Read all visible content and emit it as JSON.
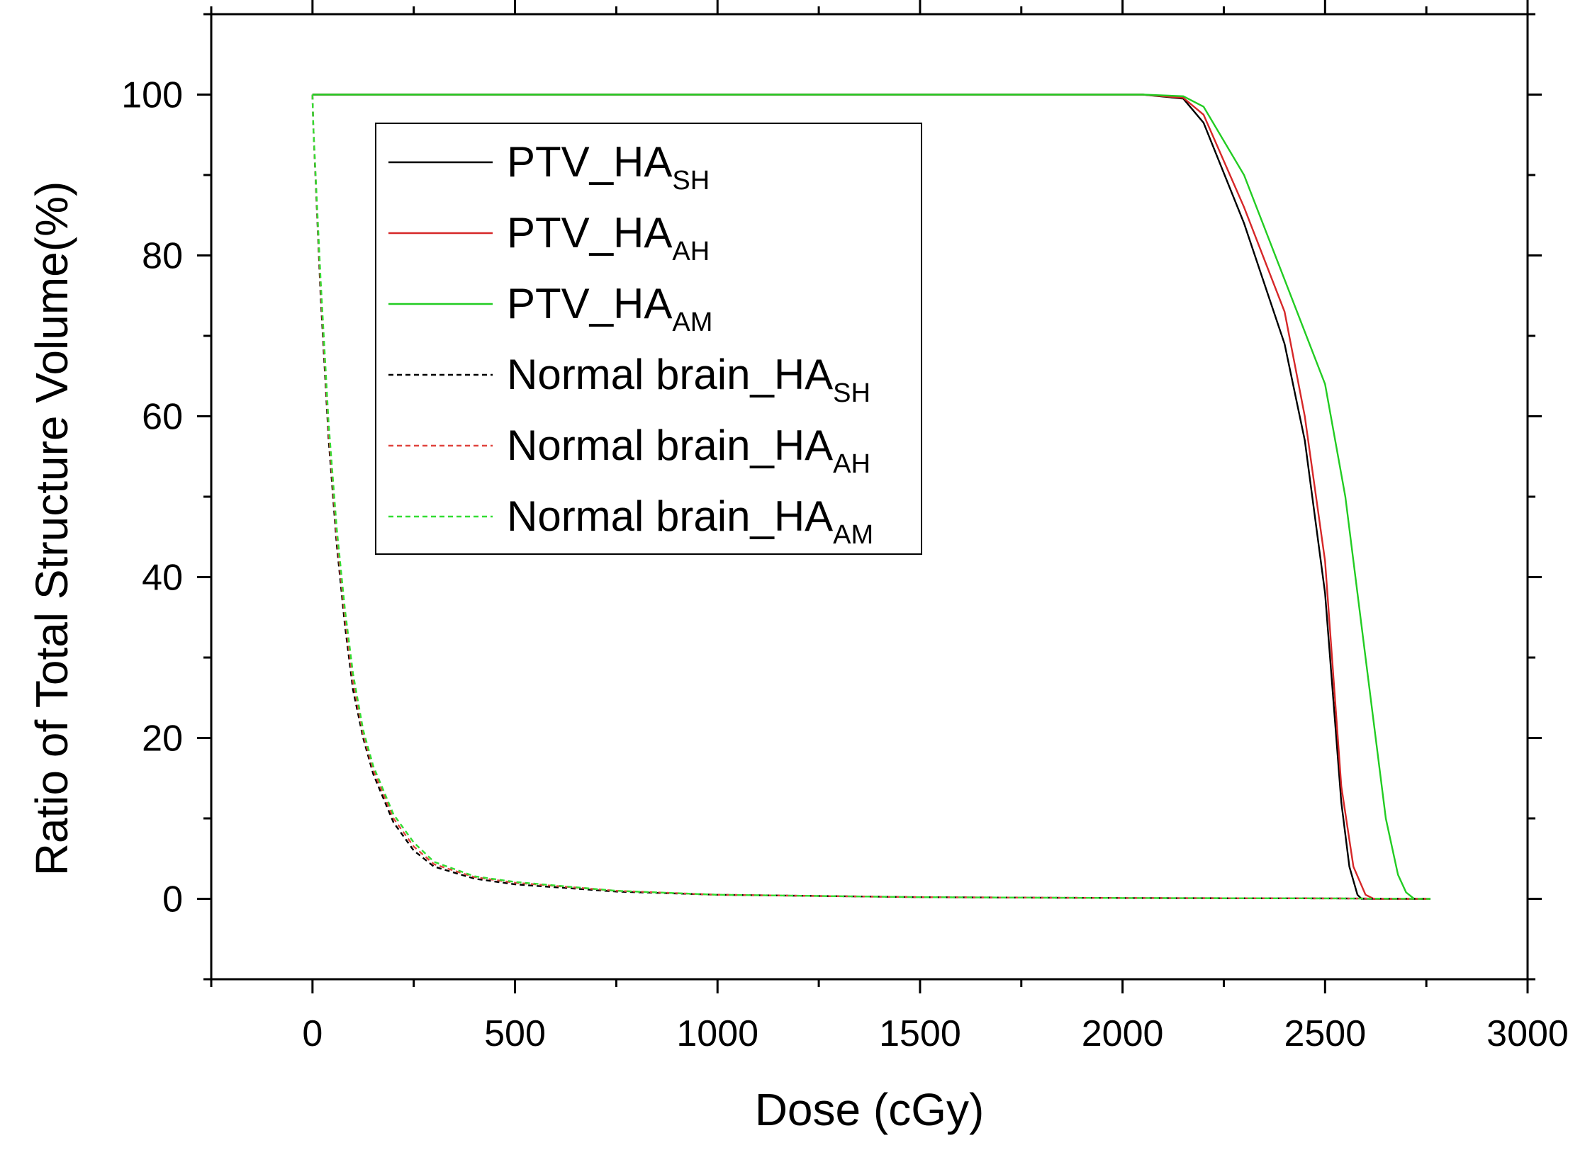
{
  "chart_data": {
    "type": "line",
    "title": "",
    "xlabel": "Dose (cGy)",
    "ylabel": "Ratio of Total Structure Volume(%)",
    "xlim": [
      -250,
      3000
    ],
    "ylim": [
      -10,
      110
    ],
    "x_ticks": [
      0,
      500,
      1000,
      1500,
      2000,
      2500,
      3000
    ],
    "x_tick_labels": [
      "0",
      "500",
      "1000",
      "1500",
      "2000",
      "2500",
      "3000"
    ],
    "y_ticks": [
      0,
      20,
      40,
      60,
      80,
      100
    ],
    "y_tick_labels": [
      "0",
      "20",
      "40",
      "60",
      "80",
      "100"
    ],
    "grid": false,
    "legend_position": "top-left",
    "series": [
      {
        "name": "PTV_HA",
        "sub": "SH",
        "color": "#000000",
        "dash": "solid",
        "x": [
          0,
          2050,
          2150,
          2200,
          2300,
          2400,
          2450,
          2500,
          2540,
          2560,
          2580,
          2590,
          2760
        ],
        "y": [
          100,
          100,
          99.5,
          96.5,
          84,
          69,
          57,
          38,
          12,
          4,
          0.5,
          0,
          0
        ]
      },
      {
        "name": "PTV_HA",
        "sub": "AH",
        "color": "#d62728",
        "dash": "solid",
        "x": [
          0,
          2050,
          2150,
          2200,
          2300,
          2400,
          2450,
          2500,
          2540,
          2570,
          2600,
          2620,
          2760
        ],
        "y": [
          100,
          100,
          99.6,
          97.5,
          86,
          73,
          60,
          42,
          14,
          4,
          0.5,
          0,
          0
        ]
      },
      {
        "name": "PTV_HA",
        "sub": "AM",
        "color": "#22cc22",
        "dash": "solid",
        "x": [
          0,
          2050,
          2150,
          2200,
          2300,
          2400,
          2500,
          2550,
          2600,
          2650,
          2680,
          2700,
          2720,
          2760
        ],
        "y": [
          100,
          100,
          99.8,
          98.5,
          90,
          77,
          64,
          50,
          30,
          10,
          3,
          0.8,
          0,
          0
        ]
      },
      {
        "name": "Normal brain_HA",
        "sub": "SH",
        "color": "#000000",
        "dash": "dashed",
        "x": [
          0,
          2,
          20,
          40,
          60,
          80,
          100,
          125,
          150,
          200,
          250,
          300,
          400,
          500,
          750,
          1000,
          1500,
          2000,
          2500,
          2760
        ],
        "y": [
          100,
          96,
          75,
          57,
          44,
          34,
          26,
          20,
          15.5,
          9.5,
          6,
          4,
          2.5,
          1.8,
          0.9,
          0.5,
          0.2,
          0.1,
          0.05,
          0
        ]
      },
      {
        "name": "Normal brain_HA",
        "sub": "AH",
        "color": "#e0443e",
        "dash": "dashed",
        "x": [
          0,
          2,
          20,
          40,
          60,
          80,
          100,
          125,
          150,
          200,
          250,
          300,
          400,
          500,
          750,
          1000,
          1500,
          2000,
          2500,
          2760
        ],
        "y": [
          100,
          96,
          76,
          58,
          45,
          35,
          27,
          20.5,
          16,
          10,
          6.5,
          4.3,
          2.7,
          2,
          1,
          0.5,
          0.2,
          0.1,
          0.05,
          0
        ]
      },
      {
        "name": "Normal brain_HA",
        "sub": "AM",
        "color": "#33dd33",
        "dash": "dashed",
        "x": [
          0,
          2,
          20,
          40,
          60,
          80,
          100,
          125,
          150,
          200,
          250,
          300,
          400,
          500,
          750,
          1000,
          1500,
          2000,
          2500,
          2760
        ],
        "y": [
          100,
          96,
          77,
          59,
          46,
          36,
          28,
          21,
          16.5,
          10.5,
          7,
          4.6,
          2.8,
          2.1,
          1,
          0.5,
          0.2,
          0.1,
          0.05,
          0
        ]
      }
    ]
  }
}
